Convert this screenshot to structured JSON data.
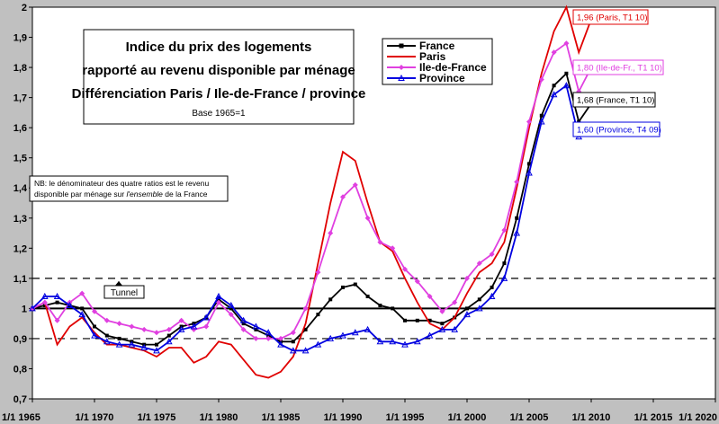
{
  "chart_data": {
    "type": "line",
    "title": [
      "Indice du prix des logements",
      "rapporté au revenu disponible par ménage",
      "Différenciation Paris / Ile-de-France / province"
    ],
    "subtitle": "Base 1965=1",
    "xlabel": "",
    "ylabel": "",
    "xlim": [
      1965,
      2020
    ],
    "ylim": [
      0.7,
      2.0
    ],
    "x_ticks": [
      "1/1 1965",
      "1/1 1970",
      "1/1 1975",
      "1/1 1980",
      "1/1 1985",
      "1/1 1990",
      "1/1 1995",
      "1/1 2000",
      "1/1 2005",
      "1/1 2010",
      "1/1 2015",
      "1/1 2020"
    ],
    "y_ticks": [
      "0,7",
      "0,8",
      "0,9",
      "1",
      "1,1",
      "1,2",
      "1,3",
      "1,4",
      "1,5",
      "1,6",
      "1,7",
      "1,8",
      "1,9",
      "2"
    ],
    "reference_lines": [
      {
        "y": 1.0,
        "style": "solid"
      },
      {
        "y": 1.1,
        "style": "dashed"
      },
      {
        "y": 0.9,
        "style": "dashed"
      }
    ],
    "note": "NB: le dénominateur des quatre ratios est le revenu disponible par ménage sur l'ensemble de la France",
    "annotation_tunnel": "Tunnel",
    "legend": {
      "position": "top-right-inside"
    },
    "series": [
      {
        "name": "France",
        "color": "#000000",
        "marker": "square",
        "points": [
          [
            1965,
            1.0
          ],
          [
            1966,
            1.01
          ],
          [
            1967,
            1.02
          ],
          [
            1968,
            1.01
          ],
          [
            1969,
            1.0
          ],
          [
            1970,
            0.94
          ],
          [
            1971,
            0.91
          ],
          [
            1972,
            0.9
          ],
          [
            1973,
            0.89
          ],
          [
            1974,
            0.88
          ],
          [
            1975,
            0.88
          ],
          [
            1976,
            0.91
          ],
          [
            1977,
            0.94
          ],
          [
            1978,
            0.95
          ],
          [
            1979,
            0.97
          ],
          [
            1980,
            1.03
          ],
          [
            1981,
            1.0
          ],
          [
            1982,
            0.95
          ],
          [
            1983,
            0.93
          ],
          [
            1984,
            0.91
          ],
          [
            1985,
            0.89
          ],
          [
            1986,
            0.89
          ],
          [
            1987,
            0.93
          ],
          [
            1988,
            0.98
          ],
          [
            1989,
            1.03
          ],
          [
            1990,
            1.07
          ],
          [
            1991,
            1.08
          ],
          [
            1992,
            1.04
          ],
          [
            1993,
            1.01
          ],
          [
            1994,
            1.0
          ],
          [
            1995,
            0.96
          ],
          [
            1996,
            0.96
          ],
          [
            1997,
            0.96
          ],
          [
            1998,
            0.95
          ],
          [
            1999,
            0.97
          ],
          [
            2000,
            1.0
          ],
          [
            2001,
            1.03
          ],
          [
            2002,
            1.07
          ],
          [
            2003,
            1.15
          ],
          [
            2004,
            1.3
          ],
          [
            2005,
            1.48
          ],
          [
            2006,
            1.64
          ],
          [
            2007,
            1.74
          ],
          [
            2008,
            1.78
          ],
          [
            2009,
            1.62
          ],
          [
            2010,
            1.68
          ]
        ]
      },
      {
        "name": "Paris",
        "color": "#e00000",
        "marker": "none",
        "points": [
          [
            1965,
            1.0
          ],
          [
            1966,
            1.02
          ],
          [
            1967,
            0.88
          ],
          [
            1968,
            0.94
          ],
          [
            1969,
            0.97
          ],
          [
            1970,
            0.92
          ],
          [
            1971,
            0.88
          ],
          [
            1972,
            0.88
          ],
          [
            1973,
            0.87
          ],
          [
            1974,
            0.86
          ],
          [
            1975,
            0.84
          ],
          [
            1976,
            0.87
          ],
          [
            1977,
            0.87
          ],
          [
            1978,
            0.82
          ],
          [
            1979,
            0.84
          ],
          [
            1980,
            0.89
          ],
          [
            1981,
            0.88
          ],
          [
            1982,
            0.83
          ],
          [
            1983,
            0.78
          ],
          [
            1984,
            0.77
          ],
          [
            1985,
            0.79
          ],
          [
            1986,
            0.84
          ],
          [
            1987,
            0.95
          ],
          [
            1988,
            1.15
          ],
          [
            1989,
            1.35
          ],
          [
            1990,
            1.52
          ],
          [
            1991,
            1.49
          ],
          [
            1992,
            1.35
          ],
          [
            1993,
            1.22
          ],
          [
            1994,
            1.19
          ],
          [
            1995,
            1.1
          ],
          [
            1996,
            1.02
          ],
          [
            1997,
            0.95
          ],
          [
            1998,
            0.93
          ],
          [
            1999,
            0.97
          ],
          [
            2000,
            1.05
          ],
          [
            2001,
            1.12
          ],
          [
            2002,
            1.15
          ],
          [
            2003,
            1.22
          ],
          [
            2004,
            1.4
          ],
          [
            2005,
            1.6
          ],
          [
            2006,
            1.78
          ],
          [
            2007,
            1.92
          ],
          [
            2008,
            2.0
          ],
          [
            2009,
            1.85
          ],
          [
            2010,
            1.96
          ]
        ]
      },
      {
        "name": "Ile-de-France",
        "color": "#e040e0",
        "marker": "diamond",
        "points": [
          [
            1965,
            1.0
          ],
          [
            1966,
            1.02
          ],
          [
            1967,
            0.96
          ],
          [
            1968,
            1.02
          ],
          [
            1969,
            1.05
          ],
          [
            1970,
            0.99
          ],
          [
            1971,
            0.96
          ],
          [
            1972,
            0.95
          ],
          [
            1973,
            0.94
          ],
          [
            1974,
            0.93
          ],
          [
            1975,
            0.92
          ],
          [
            1976,
            0.93
          ],
          [
            1977,
            0.96
          ],
          [
            1978,
            0.93
          ],
          [
            1979,
            0.94
          ],
          [
            1980,
            1.02
          ],
          [
            1981,
            0.98
          ],
          [
            1982,
            0.93
          ],
          [
            1983,
            0.9
          ],
          [
            1984,
            0.9
          ],
          [
            1985,
            0.9
          ],
          [
            1986,
            0.92
          ],
          [
            1987,
            1.0
          ],
          [
            1988,
            1.12
          ],
          [
            1989,
            1.25
          ],
          [
            1990,
            1.37
          ],
          [
            1991,
            1.41
          ],
          [
            1992,
            1.3
          ],
          [
            1993,
            1.22
          ],
          [
            1994,
            1.2
          ],
          [
            1995,
            1.13
          ],
          [
            1996,
            1.09
          ],
          [
            1997,
            1.04
          ],
          [
            1998,
            0.99
          ],
          [
            1999,
            1.02
          ],
          [
            2000,
            1.1
          ],
          [
            2001,
            1.15
          ],
          [
            2002,
            1.18
          ],
          [
            2003,
            1.26
          ],
          [
            2004,
            1.42
          ],
          [
            2005,
            1.62
          ],
          [
            2006,
            1.76
          ],
          [
            2007,
            1.85
          ],
          [
            2008,
            1.88
          ],
          [
            2009,
            1.72
          ],
          [
            2010,
            1.8
          ]
        ]
      },
      {
        "name": "Province",
        "color": "#0000e0",
        "marker": "triangle",
        "points": [
          [
            1965,
            1.0
          ],
          [
            1966,
            1.04
          ],
          [
            1967,
            1.04
          ],
          [
            1968,
            1.01
          ],
          [
            1969,
            0.98
          ],
          [
            1970,
            0.91
          ],
          [
            1971,
            0.89
          ],
          [
            1972,
            0.88
          ],
          [
            1973,
            0.88
          ],
          [
            1974,
            0.87
          ],
          [
            1975,
            0.86
          ],
          [
            1976,
            0.89
          ],
          [
            1977,
            0.93
          ],
          [
            1978,
            0.94
          ],
          [
            1979,
            0.97
          ],
          [
            1980,
            1.04
          ],
          [
            1981,
            1.01
          ],
          [
            1982,
            0.96
          ],
          [
            1983,
            0.94
          ],
          [
            1984,
            0.92
          ],
          [
            1985,
            0.88
          ],
          [
            1986,
            0.86
          ],
          [
            1987,
            0.86
          ],
          [
            1988,
            0.88
          ],
          [
            1989,
            0.9
          ],
          [
            1990,
            0.91
          ],
          [
            1991,
            0.92
          ],
          [
            1992,
            0.93
          ],
          [
            1993,
            0.89
          ],
          [
            1994,
            0.89
          ],
          [
            1995,
            0.88
          ],
          [
            1996,
            0.89
          ],
          [
            1997,
            0.91
          ],
          [
            1998,
            0.93
          ],
          [
            1999,
            0.93
          ],
          [
            2000,
            0.98
          ],
          [
            2001,
            1.0
          ],
          [
            2002,
            1.04
          ],
          [
            2003,
            1.1
          ],
          [
            2004,
            1.25
          ],
          [
            2005,
            1.45
          ],
          [
            2006,
            1.62
          ],
          [
            2007,
            1.71
          ],
          [
            2008,
            1.74
          ],
          [
            2009,
            1.57
          ],
          [
            2010,
            1.6
          ]
        ]
      }
    ],
    "end_labels": [
      {
        "series": "Paris",
        "text": "1,96 (Paris, T1 10)",
        "color": "#e00000"
      },
      {
        "series": "Ile-de-France",
        "text": "1,80 (Ile-de-Fr., T1 10)",
        "color": "#e040e0"
      },
      {
        "series": "France",
        "text": "1,68 (France, T1 10)",
        "color": "#000000"
      },
      {
        "series": "Province",
        "text": "1,60 (Province, T4 09)",
        "color": "#0000e0"
      }
    ]
  }
}
